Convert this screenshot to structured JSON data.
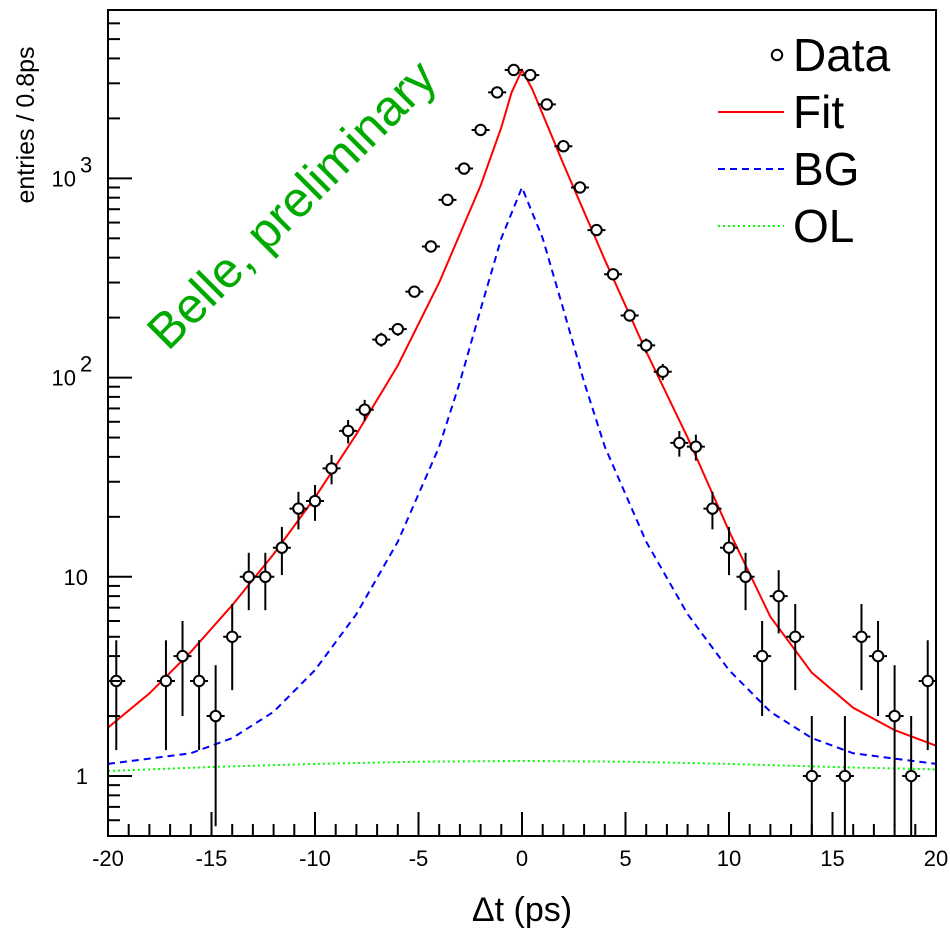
{
  "chart_data": {
    "type": "scatter",
    "xlabel": "Δt (ps)",
    "ylabel": "entries / 0.8ps",
    "xlim": [
      -20,
      20
    ],
    "ylim": [
      0.5,
      7000
    ],
    "yscale": "log",
    "grid": false,
    "legend_position": "top-right",
    "x_ticks": [
      {
        "value": -20,
        "label": "-20"
      },
      {
        "value": -15,
        "label": "-15"
      },
      {
        "value": -10,
        "label": "-10"
      },
      {
        "value": -5,
        "label": "-5"
      },
      {
        "value": 0,
        "label": "0"
      },
      {
        "value": 5,
        "label": "5"
      },
      {
        "value": 10,
        "label": "10"
      },
      {
        "value": 15,
        "label": "15"
      },
      {
        "value": 20,
        "label": "20"
      }
    ],
    "y_ticks": [
      {
        "value": 1,
        "base": "1",
        "exp": ""
      },
      {
        "value": 10,
        "base": "10",
        "exp": ""
      },
      {
        "value": 100,
        "base": "10",
        "exp": "2"
      },
      {
        "value": 1000,
        "base": "10",
        "exp": "3"
      }
    ],
    "annotation": {
      "text": "Belle, preliminary",
      "color": "#00aa00"
    },
    "legend": [
      {
        "label": "Data",
        "style": "marker",
        "color": "#000000"
      },
      {
        "label": "Fit",
        "style": "solid",
        "color": "#ff0000"
      },
      {
        "label": "BG",
        "style": "dashed",
        "color": "#0000ff"
      },
      {
        "label": "OL",
        "style": "dotted",
        "color": "#00ff00"
      }
    ],
    "series": [
      {
        "name": "Data",
        "kind": "points",
        "color": "#000000",
        "points": [
          {
            "x": -19.6,
            "y": 3,
            "lo": 1.35,
            "hi": 4.8
          },
          {
            "x": -17.2,
            "y": 3,
            "lo": 1.35,
            "hi": 4.8
          },
          {
            "x": -16.4,
            "y": 4,
            "lo": 2.0,
            "hi": 6.0
          },
          {
            "x": -15.6,
            "y": 3,
            "lo": 1.35,
            "hi": 4.8
          },
          {
            "x": -14.8,
            "y": 2,
            "lo": 0.56,
            "hi": 3.6
          },
          {
            "x": -14.0,
            "y": 5,
            "lo": 2.7,
            "hi": 7.3
          },
          {
            "x": -13.2,
            "y": 10,
            "lo": 6.8,
            "hi": 13.2
          },
          {
            "x": -12.4,
            "y": 10,
            "lo": 6.8,
            "hi": 13.2
          },
          {
            "x": -11.6,
            "y": 14,
            "lo": 10.2,
            "hi": 17.8
          },
          {
            "x": -10.8,
            "y": 22,
            "lo": 17.3,
            "hi": 26.7
          },
          {
            "x": -10.0,
            "y": 24,
            "lo": 19.1,
            "hi": 28.9
          },
          {
            "x": -9.2,
            "y": 35,
            "lo": 29.1,
            "hi": 40.9
          },
          {
            "x": -8.4,
            "y": 54,
            "lo": 46.7,
            "hi": 61.3
          },
          {
            "x": -7.6,
            "y": 69,
            "lo": 60.7,
            "hi": 77.3
          },
          {
            "x": -6.8,
            "y": 155,
            "lo": 143,
            "hi": 168
          },
          {
            "x": -6.0,
            "y": 175,
            "lo": 162,
            "hi": 188
          },
          {
            "x": -5.2,
            "y": 270,
            "lo": 254,
            "hi": 286
          },
          {
            "x": -4.4,
            "y": 455,
            "lo": 434,
            "hi": 476
          },
          {
            "x": -3.6,
            "y": 780,
            "lo": 752,
            "hi": 808
          },
          {
            "x": -2.8,
            "y": 1120,
            "lo": 1087,
            "hi": 1153
          },
          {
            "x": -2.0,
            "y": 1750,
            "lo": 1708,
            "hi": 1792
          },
          {
            "x": -1.2,
            "y": 2700,
            "lo": 2648,
            "hi": 2752
          },
          {
            "x": -0.4,
            "y": 3500,
            "lo": 3441,
            "hi": 3559
          },
          {
            "x": 0.4,
            "y": 3300,
            "lo": 3243,
            "hi": 3357
          },
          {
            "x": 1.2,
            "y": 2350,
            "lo": 2302,
            "hi": 2398
          },
          {
            "x": 2.0,
            "y": 1450,
            "lo": 1412,
            "hi": 1488
          },
          {
            "x": 2.8,
            "y": 900,
            "lo": 870,
            "hi": 930
          },
          {
            "x": 3.6,
            "y": 550,
            "lo": 527,
            "hi": 573
          },
          {
            "x": 4.4,
            "y": 330,
            "lo": 312,
            "hi": 348
          },
          {
            "x": 5.2,
            "y": 205,
            "lo": 191,
            "hi": 219
          },
          {
            "x": 6.0,
            "y": 145,
            "lo": 133,
            "hi": 157
          },
          {
            "x": 6.8,
            "y": 107,
            "lo": 97,
            "hi": 117
          },
          {
            "x": 7.6,
            "y": 47,
            "lo": 40.1,
            "hi": 53.9
          },
          {
            "x": 8.4,
            "y": 45,
            "lo": 38.3,
            "hi": 51.7
          },
          {
            "x": 9.2,
            "y": 22,
            "lo": 17.3,
            "hi": 26.7
          },
          {
            "x": 10.0,
            "y": 14,
            "lo": 10.2,
            "hi": 17.8
          },
          {
            "x": 10.8,
            "y": 10,
            "lo": 6.8,
            "hi": 13.2
          },
          {
            "x": 11.6,
            "y": 4,
            "lo": 2.0,
            "hi": 6.0
          },
          {
            "x": 12.4,
            "y": 8,
            "lo": 5.2,
            "hi": 10.8
          },
          {
            "x": 13.2,
            "y": 5,
            "lo": 2.7,
            "hi": 7.3
          },
          {
            "x": 14.0,
            "y": 1,
            "lo": 0.5,
            "hi": 2.0
          },
          {
            "x": 15.6,
            "y": 1,
            "lo": 0.5,
            "hi": 2.0
          },
          {
            "x": 16.4,
            "y": 5,
            "lo": 2.7,
            "hi": 7.3
          },
          {
            "x": 17.2,
            "y": 4,
            "lo": 2.0,
            "hi": 6.0
          },
          {
            "x": 18.0,
            "y": 2,
            "lo": 0.56,
            "hi": 3.6
          },
          {
            "x": 18.8,
            "y": 1,
            "lo": 0.5,
            "hi": 2.0
          },
          {
            "x": 19.6,
            "y": 3,
            "lo": 1.35,
            "hi": 4.8
          }
        ]
      },
      {
        "name": "Fit",
        "kind": "line",
        "style": "solid",
        "color": "#ff0000",
        "points": [
          [
            -20,
            1.75
          ],
          [
            -18,
            2.6
          ],
          [
            -16,
            4.2
          ],
          [
            -14,
            7.2
          ],
          [
            -12,
            13
          ],
          [
            -10,
            25
          ],
          [
            -8,
            52
          ],
          [
            -6,
            115
          ],
          [
            -4,
            300
          ],
          [
            -2,
            920
          ],
          [
            -1,
            1800
          ],
          [
            -0.5,
            2700
          ],
          [
            0,
            3500
          ],
          [
            0.5,
            2800
          ],
          [
            1,
            2100
          ],
          [
            2,
            1180
          ],
          [
            4,
            390
          ],
          [
            6,
            135
          ],
          [
            8,
            50
          ],
          [
            10,
            17
          ],
          [
            12,
            6.3
          ],
          [
            14,
            3.3
          ],
          [
            16,
            2.2
          ],
          [
            18,
            1.7
          ],
          [
            20,
            1.42
          ]
        ]
      },
      {
        "name": "BG",
        "kind": "line",
        "style": "dashed",
        "color": "#0000ff",
        "points": [
          [
            -20,
            1.15
          ],
          [
            -16,
            1.3
          ],
          [
            -14,
            1.55
          ],
          [
            -12,
            2.1
          ],
          [
            -10,
            3.4
          ],
          [
            -8,
            6.5
          ],
          [
            -6,
            15
          ],
          [
            -4,
            45
          ],
          [
            -3,
            95
          ],
          [
            -2,
            220
          ],
          [
            -1,
            500
          ],
          [
            0,
            900
          ],
          [
            1,
            500
          ],
          [
            2,
            220
          ],
          [
            3,
            95
          ],
          [
            4,
            45
          ],
          [
            6,
            15
          ],
          [
            8,
            6.5
          ],
          [
            10,
            3.4
          ],
          [
            12,
            2.1
          ],
          [
            14,
            1.55
          ],
          [
            16,
            1.3
          ],
          [
            20,
            1.15
          ]
        ]
      },
      {
        "name": "OL",
        "kind": "line",
        "style": "dotted",
        "color": "#00ff00",
        "points": [
          [
            -20,
            1.06
          ],
          [
            -15,
            1.11
          ],
          [
            -10,
            1.15
          ],
          [
            -5,
            1.18
          ],
          [
            0,
            1.19
          ],
          [
            5,
            1.18
          ],
          [
            10,
            1.15
          ],
          [
            15,
            1.11
          ],
          [
            20,
            1.08
          ]
        ]
      }
    ]
  }
}
